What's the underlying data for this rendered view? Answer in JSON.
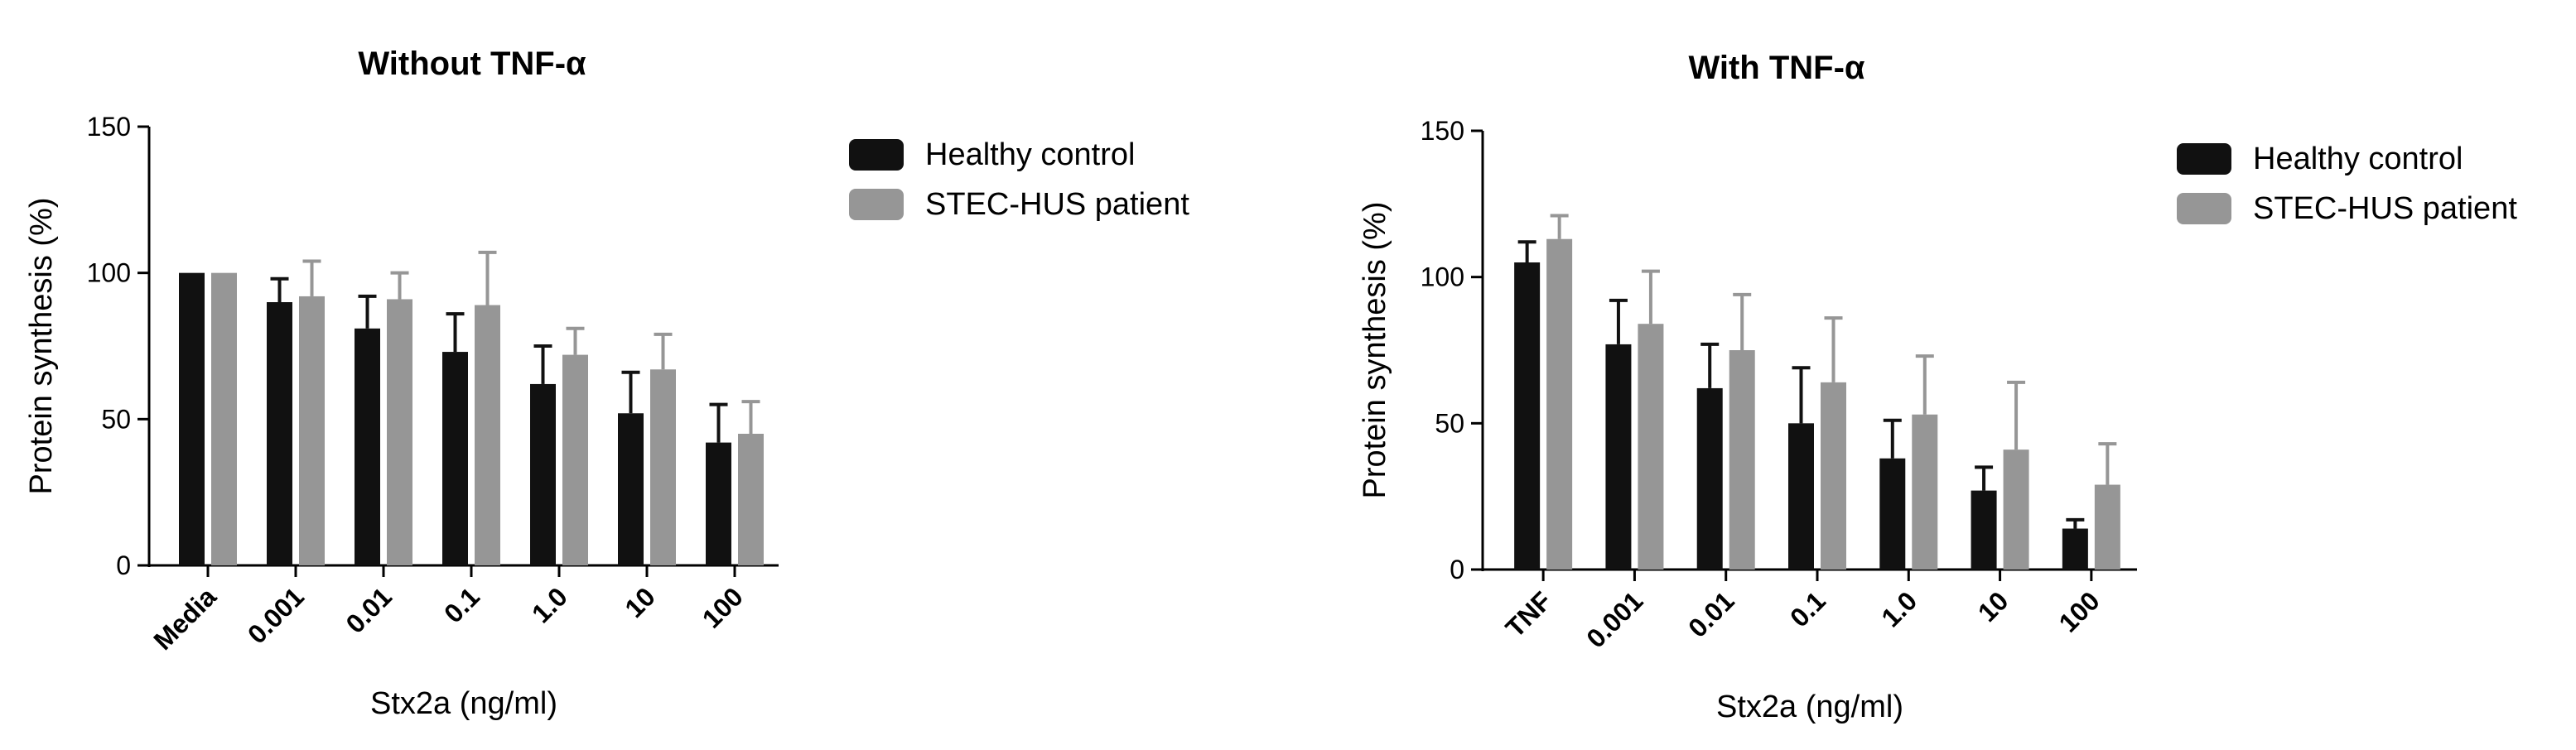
{
  "colors": {
    "healthy": "#111111",
    "patient": "#969696",
    "axis": "#000000"
  },
  "chart_data": [
    {
      "type": "bar",
      "title": "Without TNF-α",
      "xlabel": "Stx2a (ng/ml)",
      "ylabel": "Protein synthesis (%)",
      "ylim": [
        0,
        150
      ],
      "yticks": [
        0,
        50,
        100,
        150
      ],
      "categories": [
        "Media",
        "0.001",
        "0.01",
        "0.1",
        "1.0",
        "10",
        "100"
      ],
      "legend_position": "right",
      "series": [
        {
          "name": "Healthy control",
          "color_key": "healthy",
          "values": [
            100,
            90,
            81,
            73,
            62,
            52,
            42
          ],
          "errors": [
            0,
            8,
            11,
            13,
            13,
            14,
            13
          ]
        },
        {
          "name": "STEC-HUS patient",
          "color_key": "patient",
          "values": [
            100,
            92,
            91,
            89,
            72,
            67,
            45
          ],
          "errors": [
            0,
            12,
            9,
            18,
            9,
            12,
            11
          ]
        }
      ]
    },
    {
      "type": "bar",
      "title": "With TNF-α",
      "xlabel": "Stx2a (ng/ml)",
      "ylabel": "Protein synthesis (%)",
      "ylim": [
        0,
        150
      ],
      "yticks": [
        0,
        50,
        100,
        150
      ],
      "categories": [
        "TNF",
        "0.001",
        "0.01",
        "0.1",
        "1.0",
        "10",
        "100"
      ],
      "legend_position": "right",
      "series": [
        {
          "name": "Healthy control",
          "color_key": "healthy",
          "values": [
            105,
            77,
            62,
            50,
            38,
            27,
            14
          ],
          "errors": [
            7,
            15,
            15,
            19,
            13,
            8,
            3
          ]
        },
        {
          "name": "STEC-HUS patient",
          "color_key": "patient",
          "values": [
            113,
            84,
            75,
            64,
            53,
            41,
            29
          ],
          "errors": [
            8,
            18,
            19,
            22,
            20,
            23,
            14
          ]
        }
      ]
    }
  ]
}
